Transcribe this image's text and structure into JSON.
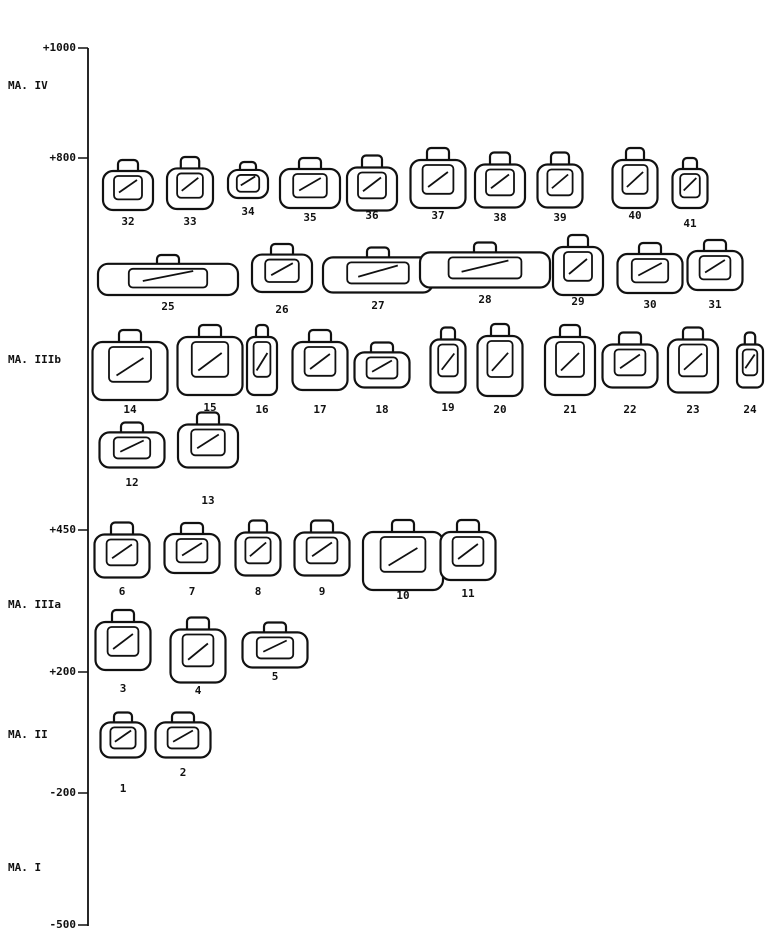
{
  "timeline": {
    "ticks": [
      "+1000",
      "+800",
      "+450",
      "+200",
      "-200",
      "-500"
    ],
    "periods": [
      "MA. IV",
      "MA. IIIb",
      "MA. IIIa",
      "MA. II",
      "MA. I"
    ]
  },
  "glyphs": [
    "32",
    "33",
    "34",
    "35",
    "36",
    "37",
    "38",
    "39",
    "40",
    "41",
    "25",
    "26",
    "27",
    "28",
    "29",
    "30",
    "31",
    "14",
    "15",
    "16",
    "17",
    "18",
    "19",
    "20",
    "21",
    "22",
    "23",
    "24",
    "12",
    "13",
    "6",
    "7",
    "8",
    "9",
    "10",
    "11",
    "3",
    "4",
    "5",
    "1",
    "2"
  ]
}
